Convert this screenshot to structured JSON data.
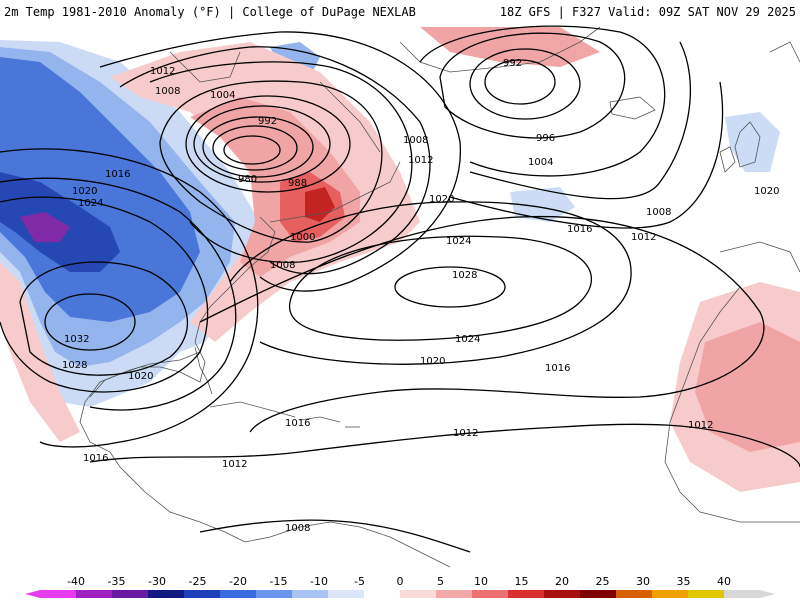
{
  "header": {
    "title_left": "2m Temp 1981-2010 Anomaly (°F) | College of DuPage NEXLAB",
    "title_right": "18Z GFS | F327 Valid: 09Z SAT NOV 29 2025"
  },
  "colors": {
    "land_outline": "#555555",
    "isobar": "#000000",
    "cold_extreme": "#7b1fa2",
    "cold_strong": "#1a3fb0",
    "cold_mod": "#3f6fd8",
    "cold_light": "#8fb0ee",
    "cold_faint": "#c9daf6",
    "warm_faint": "#f7c9c9",
    "warm_light": "#f0a0a0",
    "warm_mod": "#e55858",
    "warm_strong": "#c01818",
    "warm_extreme": "#800000"
  },
  "legend": {
    "ticks": [
      "-40",
      "-35",
      "-30",
      "-25",
      "-20",
      "-15",
      "-10",
      "-5",
      "0",
      "5",
      "10",
      "15",
      "20",
      "25",
      "30",
      "35",
      "40"
    ],
    "colors": [
      "#e63cf0",
      "#a020c0",
      "#6a1aa0",
      "#101a80",
      "#1f3fb8",
      "#3a6ae0",
      "#6a96f0",
      "#a8c4f4",
      "#dbe6fa",
      "#ffffff",
      "#fbdada",
      "#f4a8a8",
      "#ec7070",
      "#d83030",
      "#a81010",
      "#800000",
      "#d86000",
      "#f0a000",
      "#e0c800",
      "#d8d8d8"
    ]
  },
  "isobar_labels": [
    {
      "text": "1012"
    },
    {
      "text": "1008"
    },
    {
      "text": "1004"
    },
    {
      "text": "992"
    },
    {
      "text": "980"
    },
    {
      "text": "988"
    },
    {
      "text": "1016"
    },
    {
      "text": "1020"
    },
    {
      "text": "1024"
    },
    {
      "text": "1000"
    },
    {
      "text": "1008"
    },
    {
      "text": "1012"
    },
    {
      "text": "1008"
    },
    {
      "text": "992"
    },
    {
      "text": "996"
    },
    {
      "text": "1004"
    },
    {
      "text": "1008"
    },
    {
      "text": "1012"
    },
    {
      "text": "1016"
    },
    {
      "text": "1020"
    },
    {
      "text": "1020"
    },
    {
      "text": "1024"
    },
    {
      "text": "1028"
    },
    {
      "text": "1024"
    },
    {
      "text": "1020"
    },
    {
      "text": "1016"
    },
    {
      "text": "1032"
    },
    {
      "text": "1028"
    },
    {
      "text": "1020"
    },
    {
      "text": "1016"
    },
    {
      "text": "1016"
    },
    {
      "text": "1012"
    },
    {
      "text": "1012"
    },
    {
      "text": "1012"
    },
    {
      "text": "1008"
    }
  ]
}
